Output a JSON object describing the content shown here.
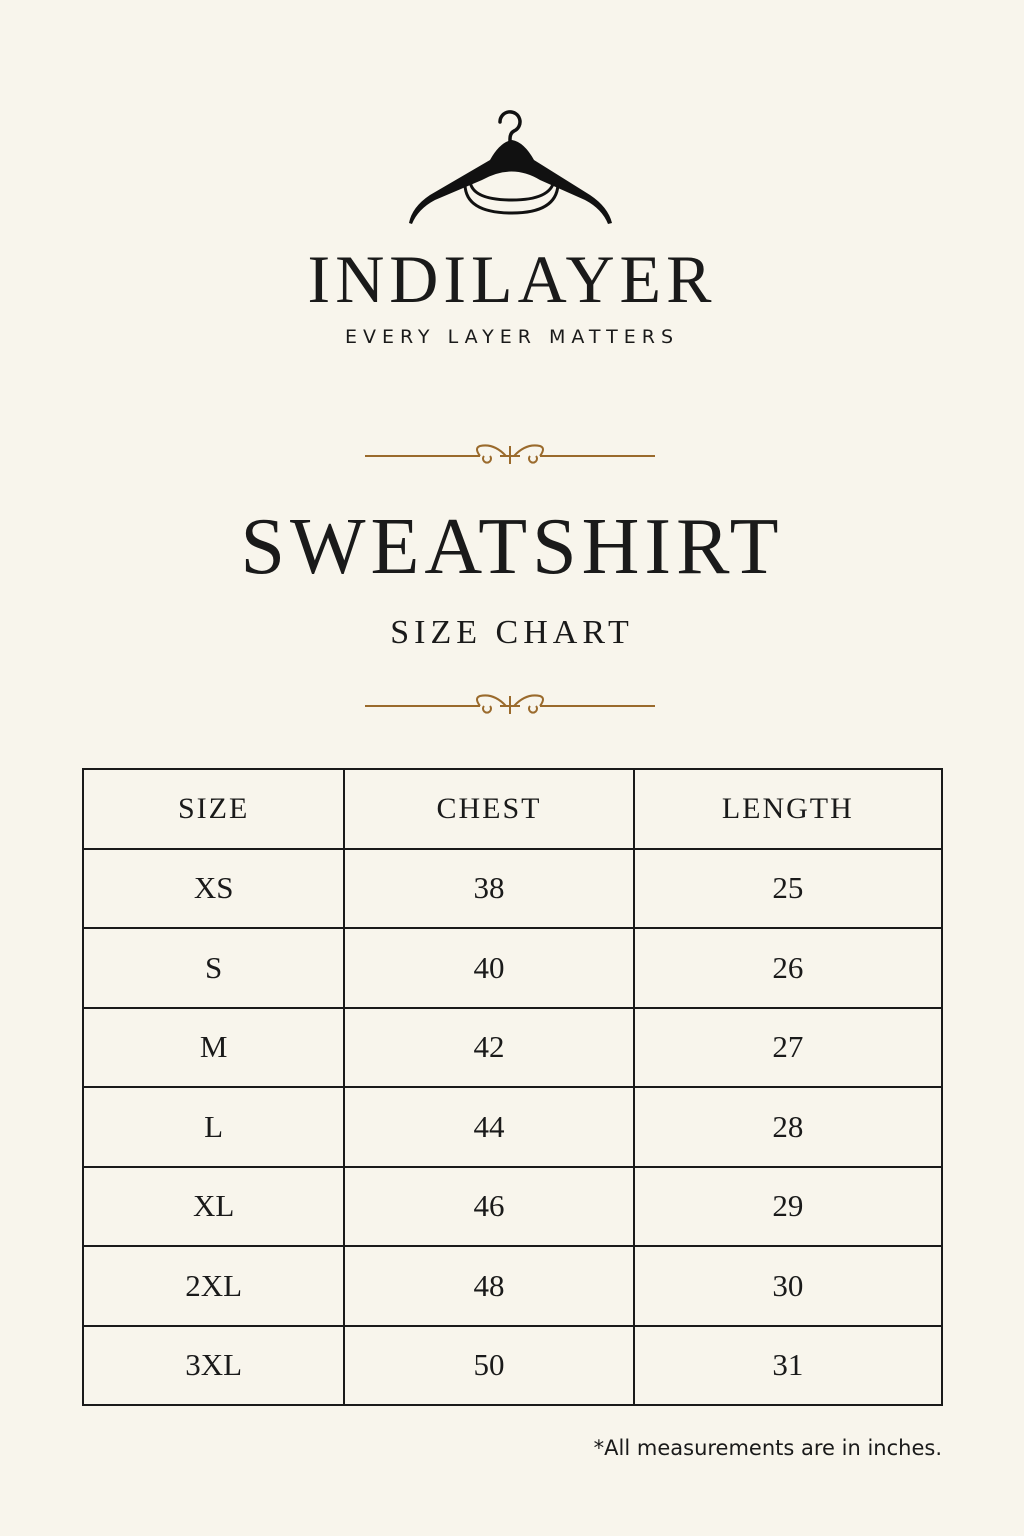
{
  "brand": {
    "name": "INDILAYER",
    "tagline": "EVERY LAYER MATTERS",
    "logo_icon": "hanger-sweatshirt-icon"
  },
  "title": "SWEATSHIRT",
  "subtitle": "SIZE CHART",
  "colors": {
    "background": "#f8f5ec",
    "ornament": "#9a6a2c",
    "text": "#1a1a1a"
  },
  "table": {
    "headers": [
      "SIZE",
      "CHEST",
      "LENGTH"
    ],
    "rows": [
      [
        "XS",
        "38",
        "25"
      ],
      [
        "S",
        "40",
        "26"
      ],
      [
        "M",
        "42",
        "27"
      ],
      [
        "L",
        "44",
        "28"
      ],
      [
        "XL",
        "46",
        "29"
      ],
      [
        "2XL",
        "48",
        "30"
      ],
      [
        "3XL",
        "50",
        "31"
      ]
    ]
  },
  "footnote": "*All measurements are in inches."
}
